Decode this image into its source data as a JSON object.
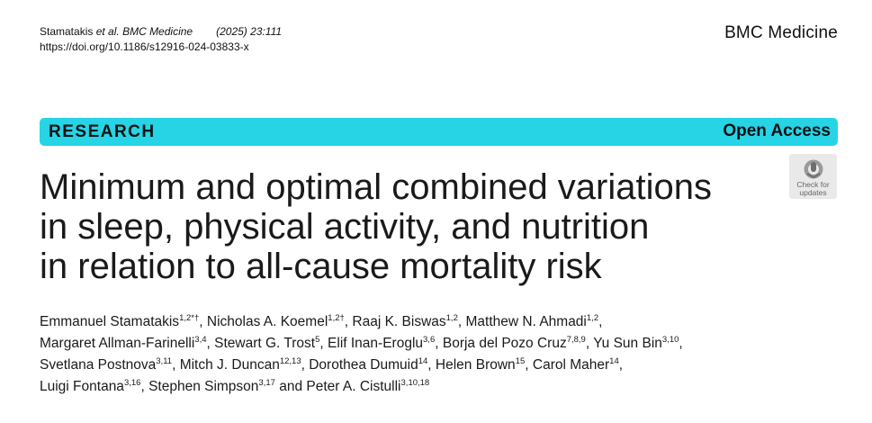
{
  "header": {
    "authors_cite": "Stamatakis",
    "et_al": "et al.",
    "journal_cite": "BMC Medicine",
    "volume": "(2025) 23:111",
    "doi": "https://doi.org/10.1186/s12916-024-03833-x",
    "journal_name": "BMC Medicine"
  },
  "banner": {
    "type": "RESEARCH",
    "access": "Open Access",
    "color": "#26d4e6"
  },
  "title_lines": [
    "Minimum and optimal combined variations",
    "in sleep, physical activity, and nutrition",
    "in relation to all-cause mortality risk"
  ],
  "badge": {
    "icon": "check-for-updates-icon",
    "line1": "Check for",
    "line2": "updates"
  },
  "authors": [
    [
      {
        "name": "Emmanuel Stamatakis",
        "sup": "1,2*†",
        "sep": ", "
      },
      {
        "name": "Nicholas A. Koemel",
        "sup": "1,2†",
        "sep": ", "
      },
      {
        "name": "Raaj K. Biswas",
        "sup": "1,2",
        "sep": ", "
      },
      {
        "name": "Matthew N. Ahmadi",
        "sup": "1,2",
        "sep": ","
      }
    ],
    [
      {
        "name": "Margaret Allman-Farinelli",
        "sup": "3,4",
        "sep": ", "
      },
      {
        "name": "Stewart G. Trost",
        "sup": "5",
        "sep": ", "
      },
      {
        "name": "Elif Inan-Eroglu",
        "sup": "3,6",
        "sep": ", "
      },
      {
        "name": "Borja del Pozo Cruz",
        "sup": "7,8,9",
        "sep": ", "
      },
      {
        "name": "Yu Sun Bin",
        "sup": "3,10",
        "sep": ","
      }
    ],
    [
      {
        "name": "Svetlana Postnova",
        "sup": "3,11",
        "sep": ", "
      },
      {
        "name": "Mitch J. Duncan",
        "sup": "12,13",
        "sep": ", "
      },
      {
        "name": "Dorothea Dumuid",
        "sup": "14",
        "sep": ", "
      },
      {
        "name": "Helen Brown",
        "sup": "15",
        "sep": ", "
      },
      {
        "name": "Carol Maher",
        "sup": "14",
        "sep": ","
      }
    ],
    [
      {
        "name": "Luigi Fontana",
        "sup": "3,16",
        "sep": ", "
      },
      {
        "name": "Stephen Simpson",
        "sup": "3,17",
        "sep": " and "
      },
      {
        "name": "Peter A. Cistulli",
        "sup": "3,10,18",
        "sep": ""
      }
    ]
  ]
}
